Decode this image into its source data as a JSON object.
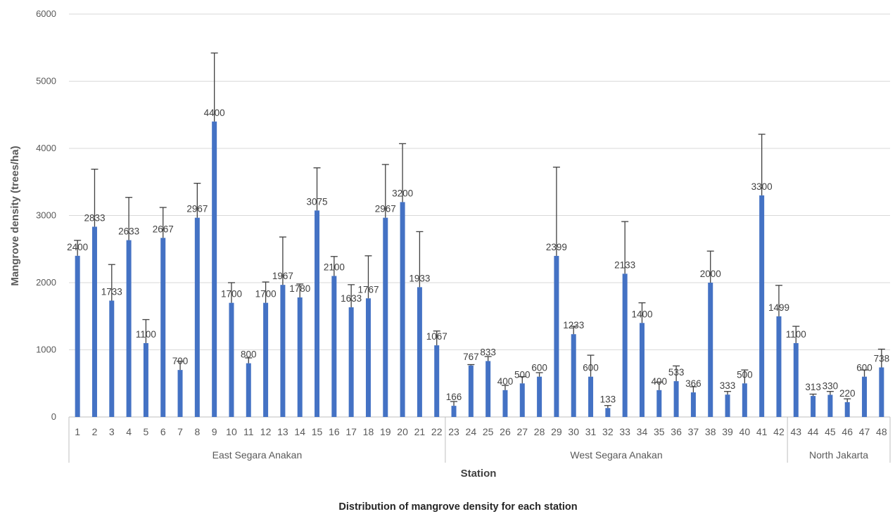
{
  "chart_data": {
    "type": "bar",
    "caption": "Distribution of mangrove density for each station",
    "xlabel": "Station",
    "ylabel": "Mangrove density (trees/ha)",
    "ylim": [
      0,
      6000
    ],
    "yticks": [
      0,
      1000,
      2000,
      3000,
      4000,
      5000,
      6000
    ],
    "grid": true,
    "legend": "none",
    "bar_color": "#4472C4",
    "error_bar_color": "#404040",
    "groups": [
      {
        "name": "East Segara Anakan",
        "start": 1,
        "end": 22
      },
      {
        "name": "West Segara Anakan",
        "start": 23,
        "end": 42
      },
      {
        "name": "North Jakarta",
        "start": 43,
        "end": 48
      }
    ],
    "categories": [
      "1",
      "2",
      "3",
      "4",
      "5",
      "6",
      "7",
      "8",
      "9",
      "10",
      "11",
      "12",
      "13",
      "14",
      "15",
      "16",
      "17",
      "18",
      "19",
      "20",
      "21",
      "22",
      "23",
      "24",
      "25",
      "26",
      "27",
      "28",
      "29",
      "30",
      "31",
      "32",
      "33",
      "34",
      "35",
      "36",
      "37",
      "38",
      "39",
      "40",
      "41",
      "42",
      "43",
      "44",
      "45",
      "46",
      "47",
      "48"
    ],
    "values": [
      2400,
      2833,
      1733,
      2633,
      1100,
      2667,
      700,
      2967,
      4400,
      1700,
      800,
      1700,
      1967,
      1780,
      3075,
      2100,
      1633,
      1767,
      2967,
      3200,
      1933,
      1067,
      166,
      767,
      833,
      400,
      500,
      600,
      2399,
      1233,
      600,
      133,
      2133,
      1400,
      400,
      533,
      366,
      2000,
      333,
      500,
      3300,
      1499,
      1100,
      313,
      330,
      220,
      600,
      738
    ],
    "error_upper": [
      2630,
      3690,
      2270,
      3270,
      1450,
      3120,
      830,
      3480,
      5420,
      2000,
      880,
      2010,
      2680,
      1980,
      3710,
      2390,
      1970,
      2400,
      3760,
      4070,
      2760,
      1280,
      230,
      780,
      900,
      470,
      600,
      660,
      3720,
      1350,
      920,
      170,
      2910,
      1700,
      520,
      760,
      450,
      2470,
      380,
      700,
      4210,
      1960,
      1350,
      340,
      380,
      270,
      700,
      1010
    ]
  }
}
